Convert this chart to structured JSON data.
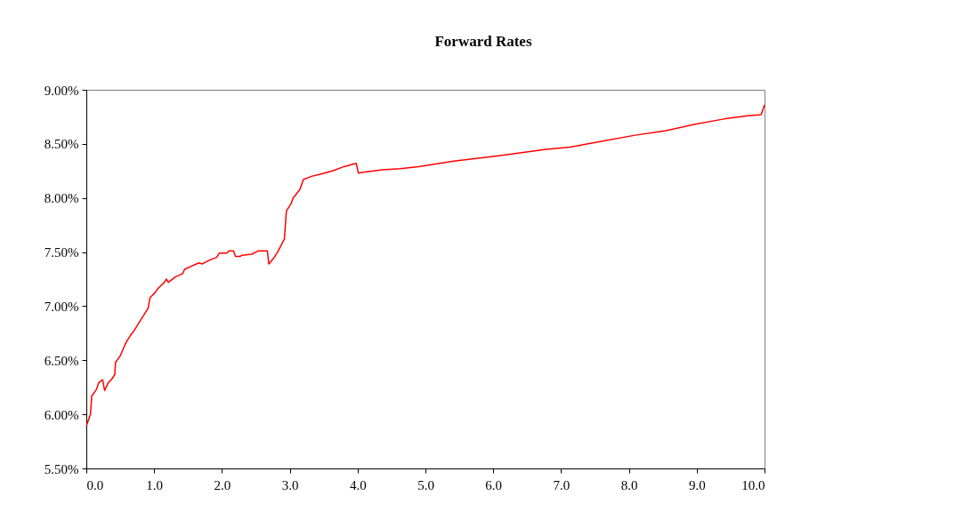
{
  "chart_data": {
    "type": "line",
    "title": "Forward Rates",
    "x": [
      0,
      0.06,
      0.08,
      0.15,
      0.18,
      0.24,
      0.27,
      0.32,
      0.38,
      0.42,
      0.43,
      0.5,
      0.56,
      0.59,
      0.65,
      0.7,
      0.76,
      0.83,
      0.91,
      0.94,
      1.02,
      1.05,
      1.15,
      1.18,
      1.21,
      1.31,
      1.42,
      1.45,
      1.55,
      1.66,
      1.71,
      1.83,
      1.92,
      1.96,
      2.07,
      2.1,
      2.17,
      2.2,
      2.27,
      2.29,
      2.44,
      2.53,
      2.67,
      2.69,
      2.77,
      2.82,
      2.92,
      2.95,
      3.02,
      3.05,
      3.15,
      3.2,
      3.32,
      3.45,
      3.63,
      3.8,
      3.98,
      4.01,
      4.11,
      4.37,
      4.63,
      4.9,
      5.42,
      6.08,
      6.78,
      7.13,
      7.56,
      8.09,
      8.53,
      8.96,
      9.4,
      9.75,
      9.95,
      10
    ],
    "series": [
      {
        "color": "#ff0000",
        "values": [
          5.89,
          6.0,
          6.17,
          6.23,
          6.29,
          6.32,
          6.22,
          6.29,
          6.33,
          6.37,
          6.48,
          6.54,
          6.63,
          6.67,
          6.73,
          6.77,
          6.83,
          6.9,
          6.98,
          7.08,
          7.13,
          7.16,
          7.22,
          7.25,
          7.22,
          7.27,
          7.3,
          7.34,
          7.37,
          7.4,
          7.39,
          7.43,
          7.45,
          7.49,
          7.49,
          7.51,
          7.51,
          7.46,
          7.46,
          7.47,
          7.48,
          7.51,
          7.51,
          7.39,
          7.45,
          7.5,
          7.62,
          7.88,
          7.95,
          8.0,
          8.08,
          8.17,
          8.2,
          8.22,
          8.25,
          8.29,
          8.32,
          8.23,
          8.24,
          8.26,
          8.27,
          8.29,
          8.34,
          8.39,
          8.45,
          8.47,
          8.52,
          8.58,
          8.62,
          8.68,
          8.73,
          8.76,
          8.77,
          8.86
        ]
      }
    ],
    "xlim": [
      0,
      10
    ],
    "xticks": [
      {
        "value": 0,
        "label": "0.0"
      },
      {
        "value": 1,
        "label": "1.0"
      },
      {
        "value": 2,
        "label": "2.0"
      },
      {
        "value": 3,
        "label": "3.0"
      },
      {
        "value": 4,
        "label": "4.0"
      },
      {
        "value": 5,
        "label": "5.0"
      },
      {
        "value": 6,
        "label": "6.0"
      },
      {
        "value": 7,
        "label": "7.0"
      },
      {
        "value": 8,
        "label": "8.0"
      },
      {
        "value": 9,
        "label": "9.0"
      },
      {
        "value": 10,
        "label": "10.0"
      }
    ],
    "ylim": [
      5.5,
      9
    ],
    "yticks": [
      {
        "value": 5.5,
        "label": "5.50%"
      },
      {
        "value": 6,
        "label": "6.00%"
      },
      {
        "value": 6.5,
        "label": "6.50%"
      },
      {
        "value": 7,
        "label": "7.00%"
      },
      {
        "value": 7.5,
        "label": "7.50%"
      },
      {
        "value": 8,
        "label": "8.00%"
      },
      {
        "value": 8.5,
        "label": "8.50%"
      },
      {
        "value": 9,
        "label": "9.00%"
      }
    ],
    "grid": false,
    "marker": "none",
    "line_style": "solid"
  }
}
